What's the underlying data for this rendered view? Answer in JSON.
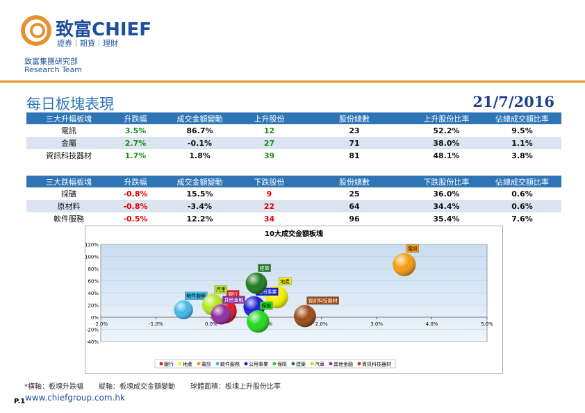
{
  "header": {
    "brand": "致富CHIEF",
    "tagline": "證券｜期貨｜理財",
    "dept": "致富集團研究部",
    "team": "Research Team"
  },
  "title": "每日板塊表現",
  "date": "21/7/2016",
  "table_up": {
    "header": [
      "三大升幅板塊",
      "升跌幅",
      "成交金額變動",
      "上升股份",
      "股份總數",
      "上升股份比率",
      "佔總成交額比率"
    ],
    "rows": [
      [
        "電訊",
        "3.5%",
        "86.7%",
        "12",
        "23",
        "52.2%",
        "9.5%"
      ],
      [
        "金屬",
        "2.7%",
        "-0.1%",
        "27",
        "71",
        "38.0%",
        "1.1%"
      ],
      [
        "資訊科技器材",
        "1.7%",
        "1.8%",
        "39",
        "81",
        "48.1%",
        "3.8%"
      ]
    ]
  },
  "table_down": {
    "header": [
      "三大跌幅板塊",
      "升跌幅",
      "成交金額變動",
      "下跌股份",
      "股份總數",
      "下跌股份比率",
      "佔總成交額比率"
    ],
    "rows": [
      [
        "採礦",
        "-0.8%",
        "15.5%",
        "9",
        "25",
        "36.0%",
        "0.6%"
      ],
      [
        "原材料",
        "-0.8%",
        "-3.4%",
        "22",
        "64",
        "34.4%",
        "0.6%"
      ],
      [
        "軟件服務",
        "-0.5%",
        "12.2%",
        "34",
        "96",
        "35.4%",
        "7.6%"
      ]
    ]
  },
  "chart_data": {
    "type": "bubble",
    "title": "10大成交金額板塊",
    "xlim": [
      -2,
      5
    ],
    "xticks": [
      {
        "value": -2,
        "label": "-2.0%"
      },
      {
        "value": -1,
        "label": "-1.0%"
      },
      {
        "value": 0,
        "label": "0.0%"
      },
      {
        "value": 1,
        "label": "1.0%"
      },
      {
        "value": 2,
        "label": "2.0%"
      },
      {
        "value": 3,
        "label": "3.0%"
      },
      {
        "value": 4,
        "label": "4.0%"
      },
      {
        "value": 5,
        "label": "5.0%"
      }
    ],
    "ylim": [
      -40,
      120
    ],
    "yticks": [
      {
        "value": -40,
        "label": "-40%"
      },
      {
        "value": -20,
        "label": "-20%"
      },
      {
        "value": 0,
        "label": "0%"
      },
      {
        "value": 20,
        "label": "20%"
      },
      {
        "value": 40,
        "label": "40%"
      },
      {
        "value": 60,
        "label": "60%"
      },
      {
        "value": 80,
        "label": "80%"
      },
      {
        "value": 100,
        "label": "100%"
      },
      {
        "value": 120,
        "label": "120%"
      }
    ],
    "grid": true,
    "series": [
      {
        "name": "銀行",
        "color": "#e8141b",
        "x": [
          0.24
        ],
        "values": [
          10
        ],
        "sizes": [
          60
        ]
      },
      {
        "name": "地產",
        "color": "#f2f200",
        "x": [
          1.19
        ],
        "values": [
          33
        ],
        "sizes": [
          50
        ]
      },
      {
        "name": "電訊",
        "color": "#f39c12",
        "x": [
          3.5
        ],
        "values": [
          86.7
        ],
        "sizes": [
          52.2
        ]
      },
      {
        "name": "軟件服務",
        "color": "#3fb8e8",
        "x": [
          -0.5
        ],
        "values": [
          12.2
        ],
        "sizes": [
          35.4
        ]
      },
      {
        "name": "公用事業",
        "color": "#1b1bd6",
        "x": [
          0.78
        ],
        "values": [
          17
        ],
        "sizes": [
          45
        ]
      },
      {
        "name": "保險",
        "color": "#22d81e",
        "x": [
          0.85
        ],
        "values": [
          -7
        ],
        "sizes": [
          50
        ]
      },
      {
        "name": "建築",
        "color": "#1e7a1e",
        "x": [
          0.82
        ],
        "values": [
          56
        ],
        "sizes": [
          45
        ]
      },
      {
        "name": "汽車",
        "color": "#b5e61d",
        "x": [
          0.03
        ],
        "values": [
          20.6
        ],
        "sizes": [
          45
        ]
      },
      {
        "name": "其他金融",
        "color": "#8e2b9e",
        "x": [
          0.18
        ],
        "values": [
          4.6
        ],
        "sizes": [
          40
        ]
      },
      {
        "name": "資訊科技器材",
        "color": "#9c4a14",
        "x": [
          1.7
        ],
        "values": [
          1.8
        ],
        "sizes": [
          48.1
        ]
      }
    ]
  },
  "footnote": [
    "*橫軸：板塊升跌幅",
    "縱軸：板塊成交金額變動",
    "球體面積：板塊上升股份比率"
  ],
  "page": "P.1",
  "url": "www.chiefgroup.com.hk"
}
